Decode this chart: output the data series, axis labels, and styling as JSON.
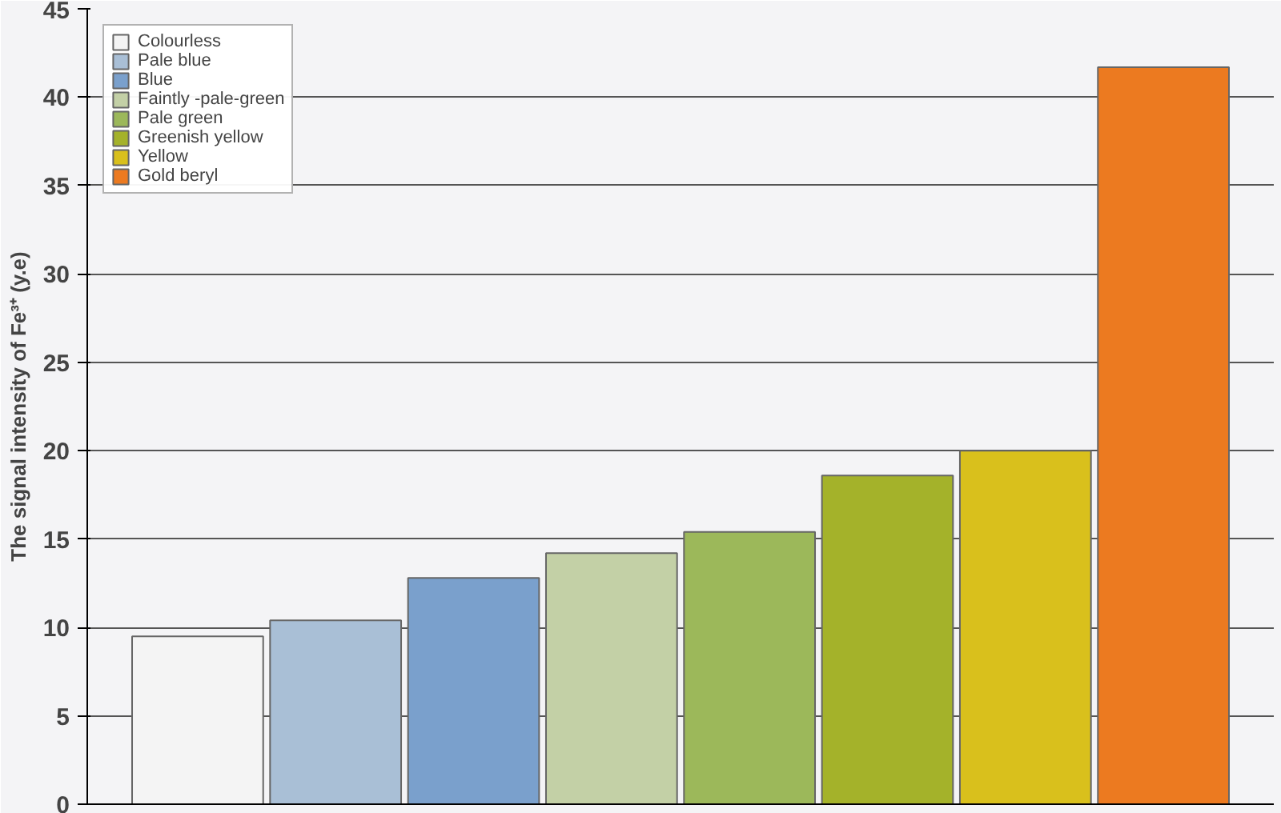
{
  "chart_data": {
    "type": "bar",
    "ylabel": "The signal intensity of Fe³⁺ (y.e)",
    "categories": [
      null,
      null,
      null,
      null,
      null,
      null,
      null,
      null
    ],
    "series": [
      {
        "name": "Colourless",
        "color": "#f4f4f4",
        "values": [
          9.5,
          null,
          null,
          null,
          null,
          null,
          null,
          null
        ]
      },
      {
        "name": "Pale blue",
        "color": "#a9bfd6",
        "values": [
          null,
          10.4,
          null,
          null,
          null,
          null,
          null,
          null
        ]
      },
      {
        "name": "Blue",
        "color": "#7aa0cc",
        "values": [
          null,
          null,
          12.8,
          null,
          null,
          null,
          null,
          null
        ]
      },
      {
        "name": "Faintly -pale-green",
        "color": "#c3d0a6",
        "values": [
          null,
          null,
          null,
          14.2,
          null,
          null,
          null,
          null
        ]
      },
      {
        "name": "Pale green",
        "color": "#9cb85a",
        "values": [
          null,
          null,
          null,
          null,
          15.4,
          null,
          null,
          null
        ]
      },
      {
        "name": "Greenish yellow",
        "color": "#a4b22a",
        "values": [
          null,
          null,
          null,
          null,
          null,
          18.6,
          null,
          null
        ]
      },
      {
        "name": "Yellow",
        "color": "#d9c01c",
        "values": [
          null,
          null,
          null,
          null,
          null,
          null,
          20.0,
          null
        ]
      },
      {
        "name": "Gold beryl",
        "color": "#ec7a20",
        "values": [
          null,
          null,
          null,
          null,
          null,
          null,
          null,
          41.7
        ]
      }
    ],
    "ylim": [
      0,
      45
    ],
    "yticks": [
      0,
      5,
      10,
      15,
      20,
      25,
      30,
      35,
      40,
      45
    ],
    "grid": "y",
    "legend": "top left"
  }
}
